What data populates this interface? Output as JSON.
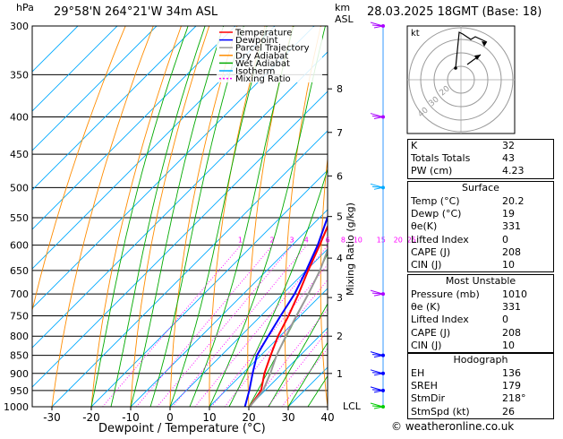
{
  "header": {
    "location": "29°58'N  264°21'W  34m  ASL",
    "datetime": "28.03.2025  18GMT  (Base: 18)",
    "p_unit": "hPa",
    "km_unit": "km",
    "asl_unit": "ASL"
  },
  "axes": {
    "xlabel": "Dewpoint / Temperature (°C)",
    "right_label": "Mixing Ratio (g/kg)",
    "lcl_label": "LCL",
    "kt_label": "kt"
  },
  "legend": [
    {
      "name": "Temperature",
      "color": "#ff0000"
    },
    {
      "name": "Dewpoint",
      "color": "#0000ff"
    },
    {
      "name": "Parcel Trajectory",
      "color": "#999999"
    },
    {
      "name": "Dry Adiabat",
      "color": "#ff8c00"
    },
    {
      "name": "Wet Adiabat",
      "color": "#00aa00"
    },
    {
      "name": "Isotherm",
      "color": "#00aaff"
    },
    {
      "name": "Mixing Ratio",
      "color": "#ff00ff"
    }
  ],
  "indices": [
    {
      "label": "K",
      "value": "32"
    },
    {
      "label": "Totals Totals",
      "value": "43"
    },
    {
      "label": "PW (cm)",
      "value": "4.23"
    }
  ],
  "surface": {
    "title": "Surface",
    "rows": [
      {
        "label": "Temp (°C)",
        "value": "20.2"
      },
      {
        "label": "Dewp (°C)",
        "value": "19"
      },
      {
        "label": "θe(K)",
        "value": "331"
      },
      {
        "label": "Lifted Index",
        "value": "0"
      },
      {
        "label": "CAPE (J)",
        "value": "208"
      },
      {
        "label": "CIN (J)",
        "value": "10"
      }
    ]
  },
  "most_unstable": {
    "title": "Most Unstable",
    "rows": [
      {
        "label": "Pressure (mb)",
        "value": "1010"
      },
      {
        "label": "θe (K)",
        "value": "331"
      },
      {
        "label": "Lifted Index",
        "value": "0"
      },
      {
        "label": "CAPE (J)",
        "value": "208"
      },
      {
        "label": "CIN (J)",
        "value": "10"
      }
    ]
  },
  "hodograph": {
    "title": "Hodograph",
    "rows": [
      {
        "label": "EH",
        "value": "136"
      },
      {
        "label": "SREH",
        "value": "179"
      },
      {
        "label": "StmDir",
        "value": "218°"
      },
      {
        "label": "StmSpd (kt)",
        "value": "26"
      }
    ],
    "ring_labels": [
      "40",
      "30",
      "20"
    ]
  },
  "footer": "© weatheronline.co.uk",
  "chart_data": {
    "type": "line",
    "title": "",
    "x_axis": {
      "label": "Dewpoint / Temperature (°C)",
      "ticks": [
        -30,
        -20,
        -10,
        0,
        10,
        20,
        30,
        40
      ],
      "range": [
        -35,
        40
      ]
    },
    "y_axis": {
      "label": "hPa",
      "scale": "log",
      "ticks": [
        300,
        350,
        400,
        450,
        500,
        550,
        600,
        650,
        700,
        750,
        800,
        850,
        900,
        950,
        1000
      ],
      "range": [
        300,
        1000
      ]
    },
    "km_axis": [
      {
        "km": 1,
        "p": 900
      },
      {
        "km": 2,
        "p": 800
      },
      {
        "km": 3,
        "p": 708
      },
      {
        "km": 4,
        "p": 625
      },
      {
        "km": 5,
        "p": 548
      },
      {
        "km": 6,
        "p": 482
      },
      {
        "km": 7,
        "p": 420
      },
      {
        "km": 8,
        "p": 366
      }
    ],
    "mixing_ratio_labels": [
      "1",
      "2",
      "3",
      "4",
      "6",
      "8",
      "10",
      "15",
      "20",
      "25"
    ],
    "mixing_ratio_values": [
      1,
      2,
      3,
      4,
      6,
      8,
      10,
      15,
      20,
      25
    ],
    "series": [
      {
        "name": "Temperature",
        "color": "#ff0000",
        "points": [
          [
            1000,
            20.2
          ],
          [
            950,
            19.0
          ],
          [
            900,
            15.5
          ],
          [
            850,
            12.5
          ],
          [
            800,
            9.5
          ],
          [
            750,
            7.0
          ],
          [
            700,
            4.0
          ],
          [
            650,
            0.5
          ],
          [
            600,
            -3.0
          ],
          [
            550,
            -7.0
          ],
          [
            500,
            -11.5
          ],
          [
            450,
            -17.5
          ],
          [
            400,
            -24.5
          ],
          [
            350,
            -33.0
          ],
          [
            300,
            -42.0
          ]
        ]
      },
      {
        "name": "Dewpoint",
        "color": "#0000ff",
        "points": [
          [
            1000,
            19.0
          ],
          [
            950,
            16.0
          ],
          [
            900,
            12.5
          ],
          [
            850,
            9.0
          ],
          [
            800,
            7.0
          ],
          [
            750,
            5.0
          ],
          [
            700,
            3.0
          ],
          [
            650,
            0.0
          ],
          [
            600,
            -3.5
          ],
          [
            550,
            -8.0
          ],
          [
            500,
            -12.5
          ],
          [
            450,
            -18.5
          ],
          [
            400,
            -25.5
          ],
          [
            350,
            -34.0
          ],
          [
            300,
            -43.0
          ]
        ]
      },
      {
        "name": "Parcel Trajectory",
        "color": "#999999",
        "points": [
          [
            1000,
            20.2
          ],
          [
            950,
            19.5
          ],
          [
            900,
            17.0
          ],
          [
            850,
            14.0
          ],
          [
            800,
            11.5
          ],
          [
            750,
            9.0
          ],
          [
            700,
            6.5
          ],
          [
            650,
            3.5
          ],
          [
            600,
            -0.5
          ],
          [
            550,
            -4.5
          ],
          [
            500,
            -9.5
          ],
          [
            450,
            -15.0
          ],
          [
            400,
            -21.5
          ],
          [
            350,
            -29.0
          ],
          [
            300,
            -38.0
          ]
        ]
      }
    ],
    "wind_barbs": [
      {
        "p": 300,
        "color": "#aa00ff"
      },
      {
        "p": 400,
        "color": "#aa00ff"
      },
      {
        "p": 500,
        "color": "#00aaff"
      },
      {
        "p": 700,
        "color": "#aa00ff"
      },
      {
        "p": 850,
        "color": "#0000ff"
      },
      {
        "p": 900,
        "color": "#0000ff"
      },
      {
        "p": 950,
        "color": "#0000ff"
      },
      {
        "p": 1000,
        "color": "#00cc00"
      }
    ]
  }
}
